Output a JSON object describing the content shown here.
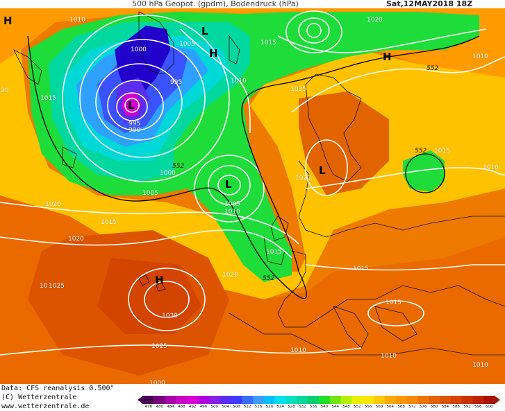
{
  "header": {
    "title": "500 hPa Geopot. (gpdm), Bodendruck (hPa)",
    "date": "Sat,12MAY2018 18Z"
  },
  "footer": {
    "data_source": "Data: CFS reanalysis 0.500°",
    "copyright": "(C) Wetterzentrale",
    "website": "www.wetterzentrale.de"
  },
  "legend": {
    "ticks": [
      "476",
      "480",
      "484",
      "488",
      "492",
      "496",
      "500",
      "504",
      "508",
      "512",
      "516",
      "520",
      "524",
      "528",
      "532",
      "536",
      "540",
      "544",
      "548",
      "552",
      "556",
      "560",
      "564",
      "568",
      "572",
      "576",
      "580",
      "584",
      "588",
      "592",
      "596",
      "600"
    ],
    "colors": [
      "#4a0050",
      "#7a007f",
      "#a800a8",
      "#c600c6",
      "#d400d4",
      "#b000e0",
      "#8a1ee6",
      "#5a2df0",
      "#3c3cff",
      "#3c6cff",
      "#3c9cff",
      "#00c0ff",
      "#00e0f0",
      "#00e0c0",
      "#00d898",
      "#00d070",
      "#22dc2a",
      "#72e612",
      "#b4f000",
      "#e8f000",
      "#ffe600",
      "#ffc800",
      "#ffaa00",
      "#ff9800",
      "#f88800",
      "#ee7400",
      "#e66400",
      "#dc5400",
      "#d24400",
      "#c83400",
      "#bc2400",
      "#a81400"
    ]
  },
  "pressure_labels": [
    {
      "text": "1010"
    },
    {
      "text": "1005"
    },
    {
      "text": "1000"
    },
    {
      "text": "995"
    },
    {
      "text": "995"
    },
    {
      "text": "990"
    },
    {
      "text": "1015"
    },
    {
      "text": "1010"
    },
    {
      "text": "1015"
    },
    {
      "text": "1020"
    },
    {
      "text": "1010"
    },
    {
      "text": "1025"
    },
    {
      "text": "1000"
    },
    {
      "text": "1005"
    },
    {
      "text": "1005"
    },
    {
      "text": "1010"
    },
    {
      "text": "1020"
    },
    {
      "text": "1020"
    },
    {
      "text": "1015"
    },
    {
      "text": "1020"
    },
    {
      "text": "1025"
    },
    {
      "text": "1030"
    },
    {
      "text": "1025"
    },
    {
      "text": "1015"
    },
    {
      "text": "1015"
    },
    {
      "text": "1015"
    },
    {
      "text": "1010"
    },
    {
      "text": "1010"
    },
    {
      "text": "1010"
    },
    {
      "text": "1015"
    },
    {
      "text": "1010"
    },
    {
      "text": "1020"
    },
    {
      "text": "20"
    },
    {
      "text": "10"
    },
    {
      "text": "1000"
    }
  ],
  "geopot_labels": [
    {
      "text": "552"
    },
    {
      "text": "552"
    },
    {
      "text": "552"
    },
    {
      "text": "552"
    }
  ],
  "centers": [
    {
      "text": "H"
    },
    {
      "text": "L"
    },
    {
      "text": "H"
    },
    {
      "text": "L"
    },
    {
      "text": "L"
    },
    {
      "text": "H"
    },
    {
      "text": "L"
    },
    {
      "text": "H"
    }
  ]
}
